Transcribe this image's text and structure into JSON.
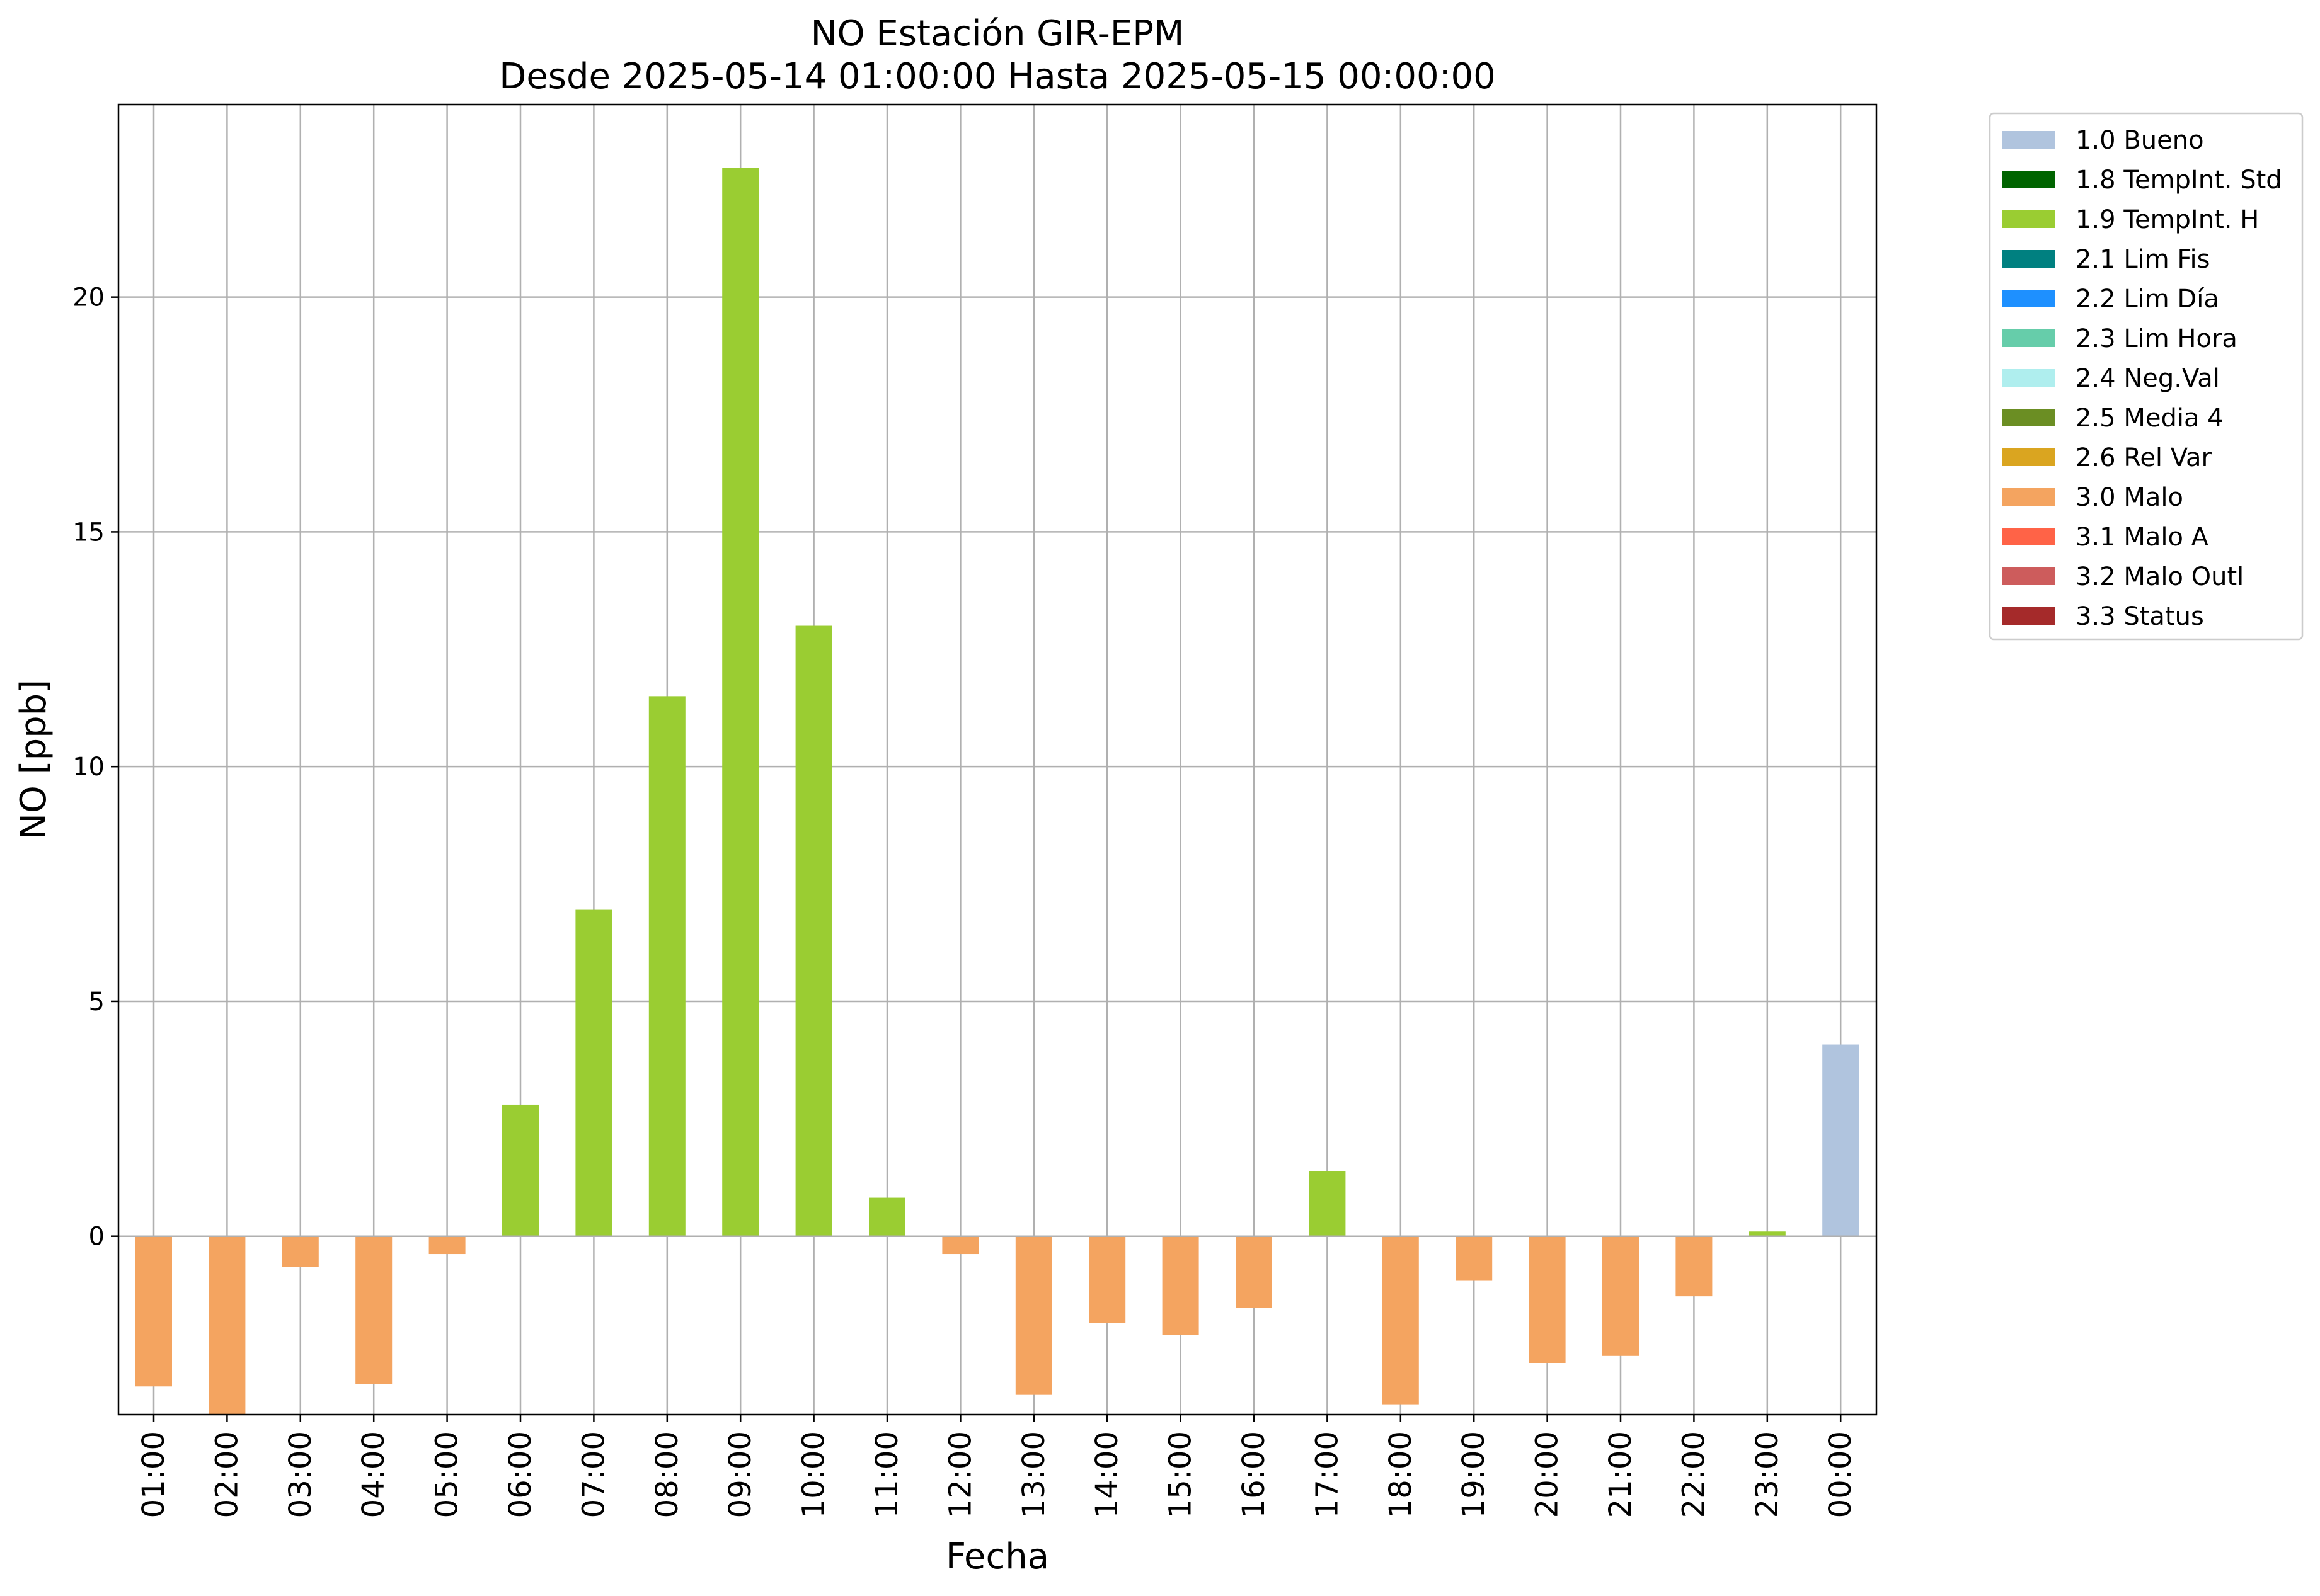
{
  "chart_data": {
    "type": "bar",
    "title": "NO Estación GIR-EPM",
    "subtitle": "Desde 2025-05-14 01:00:00 Hasta 2025-05-15 00:00:00",
    "xlabel": "Fecha",
    "ylabel": "NO [ppb]",
    "ylim": [
      -3.8,
      24.1
    ],
    "yticks": [
      0,
      5,
      10,
      15,
      20
    ],
    "grid": true,
    "legend_position": "outside right, top",
    "categories": [
      "01:00",
      "02:00",
      "03:00",
      "04:00",
      "05:00",
      "06:00",
      "07:00",
      "08:00",
      "09:00",
      "10:00",
      "11:00",
      "12:00",
      "13:00",
      "14:00",
      "15:00",
      "16:00",
      "17:00",
      "18:00",
      "19:00",
      "20:00",
      "21:00",
      "22:00",
      "23:00",
      "00:00"
    ],
    "values": [
      -3.2,
      -3.8,
      -0.65,
      -3.15,
      -0.38,
      2.8,
      6.95,
      11.5,
      22.75,
      13.0,
      0.82,
      -0.38,
      -3.38,
      -1.85,
      -2.1,
      -1.52,
      1.38,
      -3.58,
      -0.95,
      -2.7,
      -2.55,
      -1.28,
      0.1,
      4.08
    ],
    "flags": [
      "3.0",
      "3.0",
      "3.0",
      "3.0",
      "3.0",
      "1.9",
      "1.9",
      "1.9",
      "1.9",
      "1.9",
      "1.9",
      "3.0",
      "3.0",
      "3.0",
      "3.0",
      "3.0",
      "1.9",
      "3.0",
      "3.0",
      "3.0",
      "3.0",
      "3.0",
      "1.9",
      "1.0"
    ],
    "legend": [
      {
        "code": "1.0",
        "label": "1.0 Bueno",
        "color": "#b0c4de"
      },
      {
        "code": "1.8",
        "label": "1.8 TempInt. Std",
        "color": "#006400"
      },
      {
        "code": "1.9",
        "label": "1.9 TempInt. H",
        "color": "#9acd32"
      },
      {
        "code": "2.1",
        "label": "2.1 Lim Fis",
        "color": "#008080"
      },
      {
        "code": "2.2",
        "label": "2.2 Lim Día",
        "color": "#1e90ff"
      },
      {
        "code": "2.3",
        "label": "2.3 Lim Hora",
        "color": "#66cdaa"
      },
      {
        "code": "2.4",
        "label": "2.4 Neg.Val",
        "color": "#afeeee"
      },
      {
        "code": "2.5",
        "label": "2.5 Media 4",
        "color": "#6b8e23"
      },
      {
        "code": "2.6",
        "label": "2.6 Rel Var",
        "color": "#daa520"
      },
      {
        "code": "3.0",
        "label": "3.0 Malo",
        "color": "#f4a460"
      },
      {
        "code": "3.1",
        "label": "3.1 Malo A",
        "color": "#ff6347"
      },
      {
        "code": "3.2",
        "label": "3.2 Malo Outl",
        "color": "#cd5c5c"
      },
      {
        "code": "3.3",
        "label": "3.3 Status",
        "color": "#a52a2a"
      }
    ]
  }
}
